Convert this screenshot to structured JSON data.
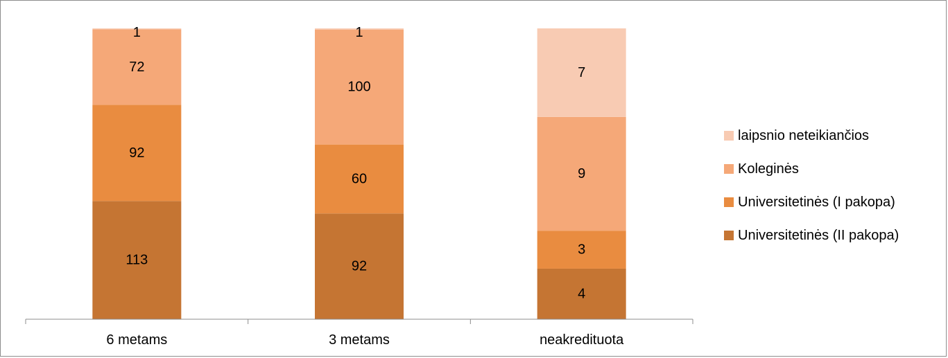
{
  "chart_data": {
    "type": "bar",
    "stacked": "percent",
    "categories": [
      "6 metams",
      "3 metams",
      "neakredituota"
    ],
    "series": [
      {
        "name": "Universitetinės (II pakopa)",
        "values": [
          113,
          92,
          4
        ],
        "color": "#c57533"
      },
      {
        "name": "Universitetinės (I pakopa)",
        "values": [
          92,
          60,
          3
        ],
        "color": "#e98c40"
      },
      {
        "name": "Koleginės",
        "values": [
          72,
          100,
          9
        ],
        "color": "#f5a878"
      },
      {
        "name": "laipsnio neteikiančios",
        "values": [
          1,
          1,
          7
        ],
        "color": "#f8cbb3"
      }
    ],
    "title": "",
    "xlabel": "",
    "ylabel": "",
    "ylim": [
      0,
      1
    ],
    "grid": false,
    "legend_position": "right"
  }
}
